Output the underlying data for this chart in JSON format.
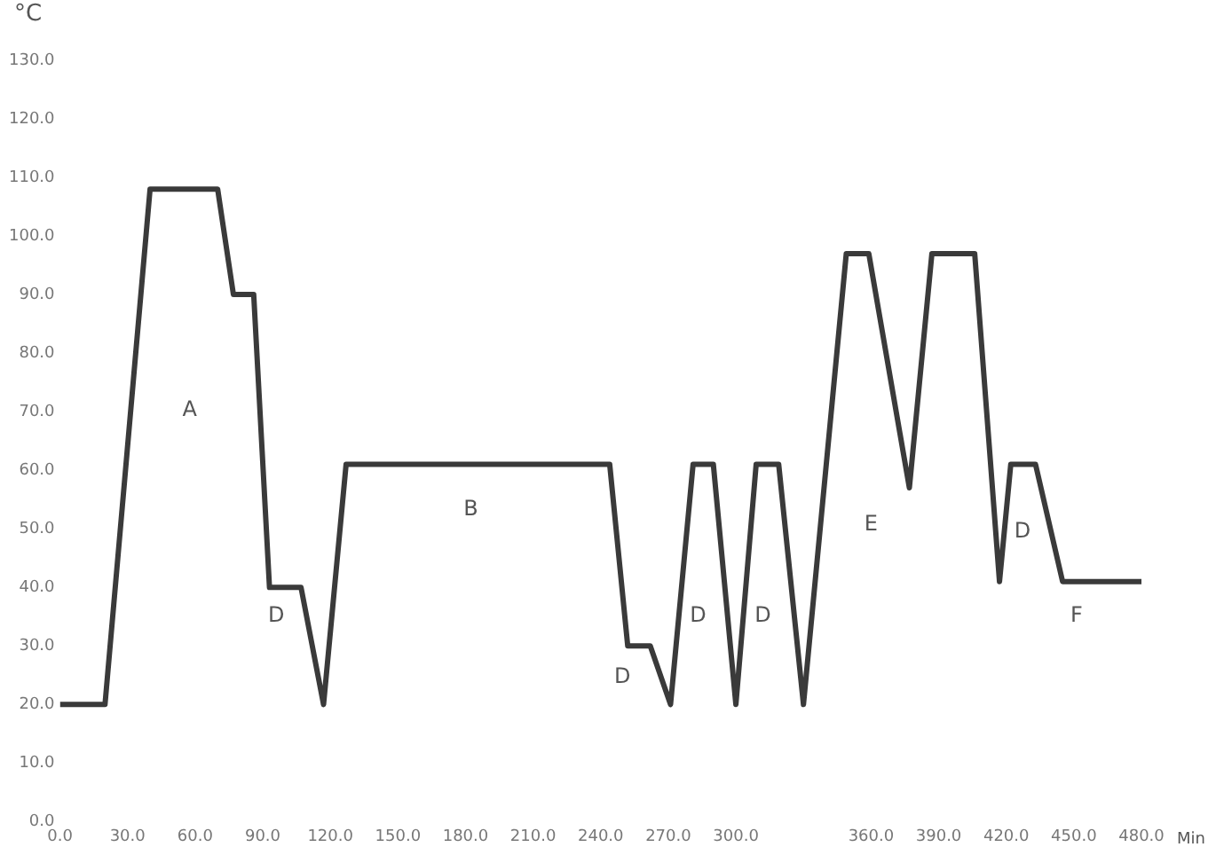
{
  "chart_data": {
    "type": "line",
    "ylabel": "°C",
    "xlabel": "Min",
    "x": [
      0,
      20,
      40,
      70,
      77,
      86,
      93,
      107,
      117,
      127,
      244,
      252,
      262,
      271,
      281,
      290,
      300,
      309,
      319,
      330,
      349,
      359,
      377,
      387,
      406,
      417,
      422,
      433,
      445,
      480
    ],
    "series": [
      {
        "color": "#3a3a3a",
        "values": [
          20,
          20,
          108,
          108,
          90,
          90,
          40,
          40,
          20,
          61,
          61,
          30,
          30,
          20,
          61,
          61,
          20,
          61,
          61,
          20,
          97,
          97,
          57,
          97,
          97,
          41,
          61,
          61,
          41,
          41
        ]
      }
    ],
    "xlim": [
      0,
      480
    ],
    "xticks": [
      {
        "value": 0,
        "label": "0.0"
      },
      {
        "value": 30,
        "label": "30.0"
      },
      {
        "value": 60,
        "label": "60.0"
      },
      {
        "value": 90,
        "label": "90.0"
      },
      {
        "value": 120,
        "label": "120.0"
      },
      {
        "value": 150,
        "label": "150.0"
      },
      {
        "value": 180,
        "label": "180.0"
      },
      {
        "value": 210,
        "label": "210.0"
      },
      {
        "value": 240,
        "label": "240.0"
      },
      {
        "value": 270,
        "label": "270.0"
      },
      {
        "value": 300,
        "label": "300.0"
      },
      {
        "value": 360,
        "label": "360.0"
      },
      {
        "value": 390,
        "label": "390.0"
      },
      {
        "value": 420,
        "label": "420.0"
      },
      {
        "value": 450,
        "label": "450.0"
      },
      {
        "value": 480,
        "label": "480.0"
      }
    ],
    "ylim": [
      0,
      130
    ],
    "yticks": [
      {
        "value": 0,
        "label": "0.0"
      },
      {
        "value": 10,
        "label": "10.0"
      },
      {
        "value": 20,
        "label": "20.0"
      },
      {
        "value": 30,
        "label": "30.0"
      },
      {
        "value": 40,
        "label": "40.0"
      },
      {
        "value": 50,
        "label": "50.0"
      },
      {
        "value": 60,
        "label": "60.0"
      },
      {
        "value": 70,
        "label": "70.0"
      },
      {
        "value": 80,
        "label": "80.0"
      },
      {
        "value": 90,
        "label": "90.0"
      },
      {
        "value": 100,
        "label": "100.0"
      },
      {
        "value": 110,
        "label": "110.0"
      },
      {
        "value": 120,
        "label": "120.0"
      },
      {
        "value": 130,
        "label": "130.0"
      }
    ],
    "annotations": [
      "A",
      "D",
      "B",
      "D",
      "D",
      "D",
      "E",
      "D",
      "F"
    ],
    "grid": false,
    "legend": false,
    "marker": "none",
    "line_style": "solid"
  }
}
